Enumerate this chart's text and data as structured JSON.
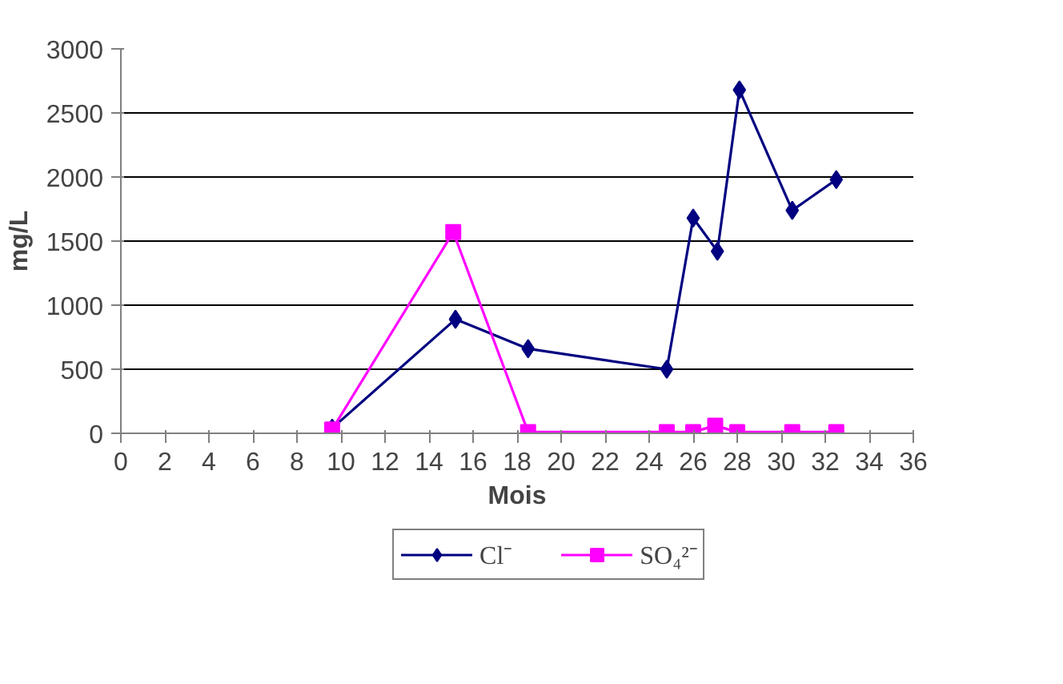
{
  "chart_data": {
    "type": "line",
    "xlabel": "Mois",
    "ylabel": "mg/L",
    "xlim": [
      0,
      36
    ],
    "xticks": [
      0,
      2,
      4,
      6,
      8,
      10,
      12,
      14,
      16,
      18,
      20,
      22,
      24,
      26,
      28,
      30,
      32,
      34,
      36
    ],
    "ylim": [
      0,
      3000
    ],
    "yticks": [
      0,
      500,
      1000,
      1500,
      2000,
      2500,
      3000
    ],
    "grid": "y",
    "legend": "bottom",
    "series": [
      {
        "name": "Cl⁻",
        "color": "#000080",
        "marker": "diamond",
        "x": [
          9.6,
          15.2,
          18.5,
          24.8,
          26.0,
          27.1,
          28.1,
          30.5,
          32.5
        ],
        "values": [
          40,
          890,
          660,
          500,
          1680,
          1420,
          2680,
          1740,
          1980
        ]
      },
      {
        "name": "SO₄²⁻",
        "color": "#ff00ff",
        "marker": "square",
        "x": [
          9.6,
          15.1,
          18.5,
          24.8,
          26.0,
          27.0,
          28.0,
          30.5,
          32.5
        ],
        "values": [
          30,
          1570,
          10,
          10,
          10,
          60,
          10,
          10,
          10
        ]
      }
    ]
  }
}
